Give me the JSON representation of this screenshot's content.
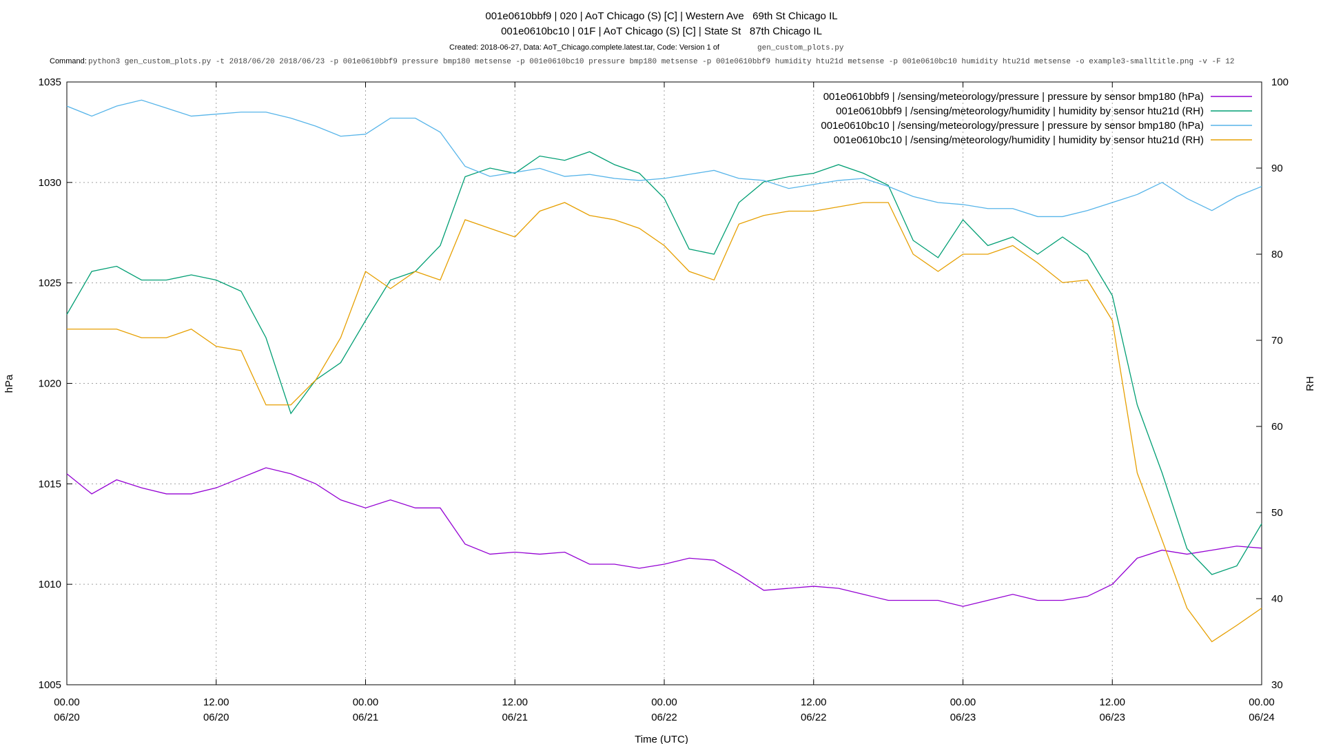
{
  "chart_data": {
    "type": "line",
    "title_lines": [
      "001e0610bbf9 | 020 | AoT Chicago (S) [C] | Western Ave   69th St Chicago IL",
      "001e0610bc10 | 01F | AoT Chicago (S) [C] | State St   87th Chicago IL"
    ],
    "created_text": "Created: 2018-06-27, Data: AoT_Chicago.complete.latest.tar, Code: Version 1 of",
    "created_code": "gen_custom_plots.py",
    "command_label": "Command:",
    "command": "python3 gen_custom_plots.py -t 2018/06/20 2018/06/23 -p 001e0610bbf9 pressure bmp180 metsense -p 001e0610bc10 pressure bmp180 metsense -p 001e0610bbf9 humidity htu21d metsense -p 001e0610bc10 humidity htu21d metsense -o example3-smalltitle.png -v -F 12",
    "x_label": "Time (UTC)",
    "y_label": "hPa",
    "y2_label": "RH",
    "grid": true,
    "legend": "top-right",
    "xlim": [
      0,
      96
    ],
    "xticks": [
      {
        "value": 0,
        "label": "00.00 06/20"
      },
      {
        "value": 12,
        "label": "12.00 06/20"
      },
      {
        "value": 24,
        "label": "00.00 06/21"
      },
      {
        "value": 36,
        "label": "12.00 06/21"
      },
      {
        "value": 48,
        "label": "00.00 06/22"
      },
      {
        "value": 60,
        "label": "12.00 06/22"
      },
      {
        "value": 72,
        "label": "00.00 06/23"
      },
      {
        "value": 84,
        "label": "12.00 06/23"
      },
      {
        "value": 96,
        "label": "00.00 06/24"
      }
    ],
    "ylim": [
      1005,
      1035
    ],
    "yticks": [
      1005,
      1010,
      1015,
      1020,
      1025,
      1030,
      1035
    ],
    "y2lim": [
      30,
      100
    ],
    "y2ticks": [
      30,
      40,
      50,
      60,
      70,
      80,
      90,
      100
    ],
    "x": [
      0,
      2,
      4,
      6,
      8,
      10,
      12,
      14,
      16,
      18,
      20,
      22,
      24,
      26,
      28,
      30,
      32,
      34,
      36,
      38,
      40,
      42,
      44,
      46,
      48,
      50,
      52,
      54,
      56,
      58,
      60,
      62,
      64,
      66,
      68,
      70,
      72,
      74,
      76,
      78,
      80,
      82,
      84,
      86,
      88,
      90,
      92,
      94,
      96
    ],
    "series": [
      {
        "name": "001e0610bbf9 | /sensing/meteorology/pressure | pressure by sensor bmp180 (hPa)",
        "color": "#9400d3",
        "axis": "y",
        "values": [
          1015.5,
          1014.5,
          1015.2,
          1014.8,
          1014.5,
          1014.5,
          1014.8,
          1015.3,
          1015.8,
          1015.5,
          1015,
          1014.2,
          1013.8,
          1014.2,
          1013.8,
          1013.8,
          1012,
          1011.5,
          1011.6,
          1011.5,
          1011.6,
          1011,
          1011,
          1010.8,
          1011,
          1011.3,
          1011.2,
          1010.5,
          1009.7,
          1009.8,
          1009.9,
          1009.8,
          1009.5,
          1009.2,
          1009.2,
          1009.2,
          1008.9,
          1009.2,
          1009.5,
          1009.2,
          1009.2,
          1009.4,
          1010,
          1011.3,
          1011.7,
          1011.5,
          1011.7,
          1011.9,
          1011.8
        ]
      },
      {
        "name": "001e0610bbf9 | /sensing/meteorology/humidity | humidity by sensor htu21d (RH)",
        "color": "#009e73",
        "axis": "y2",
        "values": [
          73,
          78,
          78.6,
          77,
          77,
          77.6,
          77,
          75.7,
          70.3,
          61.5,
          65.4,
          67.4,
          72.3,
          77,
          78,
          81,
          89,
          90,
          89.4,
          91.4,
          90.9,
          91.9,
          90.4,
          89.4,
          86.5,
          80.6,
          80,
          86,
          88.4,
          89,
          89.4,
          90.4,
          89.4,
          88,
          81.6,
          79.6,
          84,
          81,
          82,
          80,
          82,
          80,
          75.2,
          62.5,
          54.6,
          45.8,
          42.8,
          43.8,
          48.7
        ]
      },
      {
        "name": "001e0610bc10 | /sensing/meteorology/pressure | pressure by sensor bmp180 (hPa)",
        "color": "#56b4e9",
        "axis": "y",
        "values": [
          1033.8,
          1033.3,
          1033.8,
          1034.1,
          1033.7,
          1033.3,
          1033.4,
          1033.5,
          1033.5,
          1033.2,
          1032.8,
          1032.3,
          1032.4,
          1033.2,
          1033.2,
          1032.5,
          1030.8,
          1030.3,
          1030.5,
          1030.7,
          1030.3,
          1030.4,
          1030.2,
          1030.1,
          1030.2,
          1030.4,
          1030.6,
          1030.2,
          1030.1,
          1029.7,
          1029.9,
          1030.1,
          1030.2,
          1029.8,
          1029.3,
          1029,
          1028.9,
          1028.7,
          1028.7,
          1028.3,
          1028.3,
          1028.6,
          1029,
          1029.4,
          1030,
          1029.2,
          1028.6,
          1029.3,
          1029.8
        ]
      },
      {
        "name": "001e0610bc10 | /sensing/meteorology/humidity | humidity by sensor htu21d (RH)",
        "color": "#e69f00",
        "axis": "y2",
        "values": [
          71.3,
          71.3,
          71.3,
          70.3,
          70.3,
          71.3,
          69.3,
          68.8,
          62.5,
          62.5,
          65.4,
          70.3,
          78,
          76,
          78,
          77,
          84,
          83,
          82,
          85,
          86,
          84.5,
          84,
          83,
          81,
          78,
          77,
          83.5,
          84.5,
          85,
          85,
          85.5,
          86,
          86,
          80,
          78,
          80,
          80,
          81,
          79,
          76.7,
          77,
          72.3,
          54.6,
          46.8,
          38.9,
          35,
          36.9,
          38.9
        ]
      }
    ]
  }
}
